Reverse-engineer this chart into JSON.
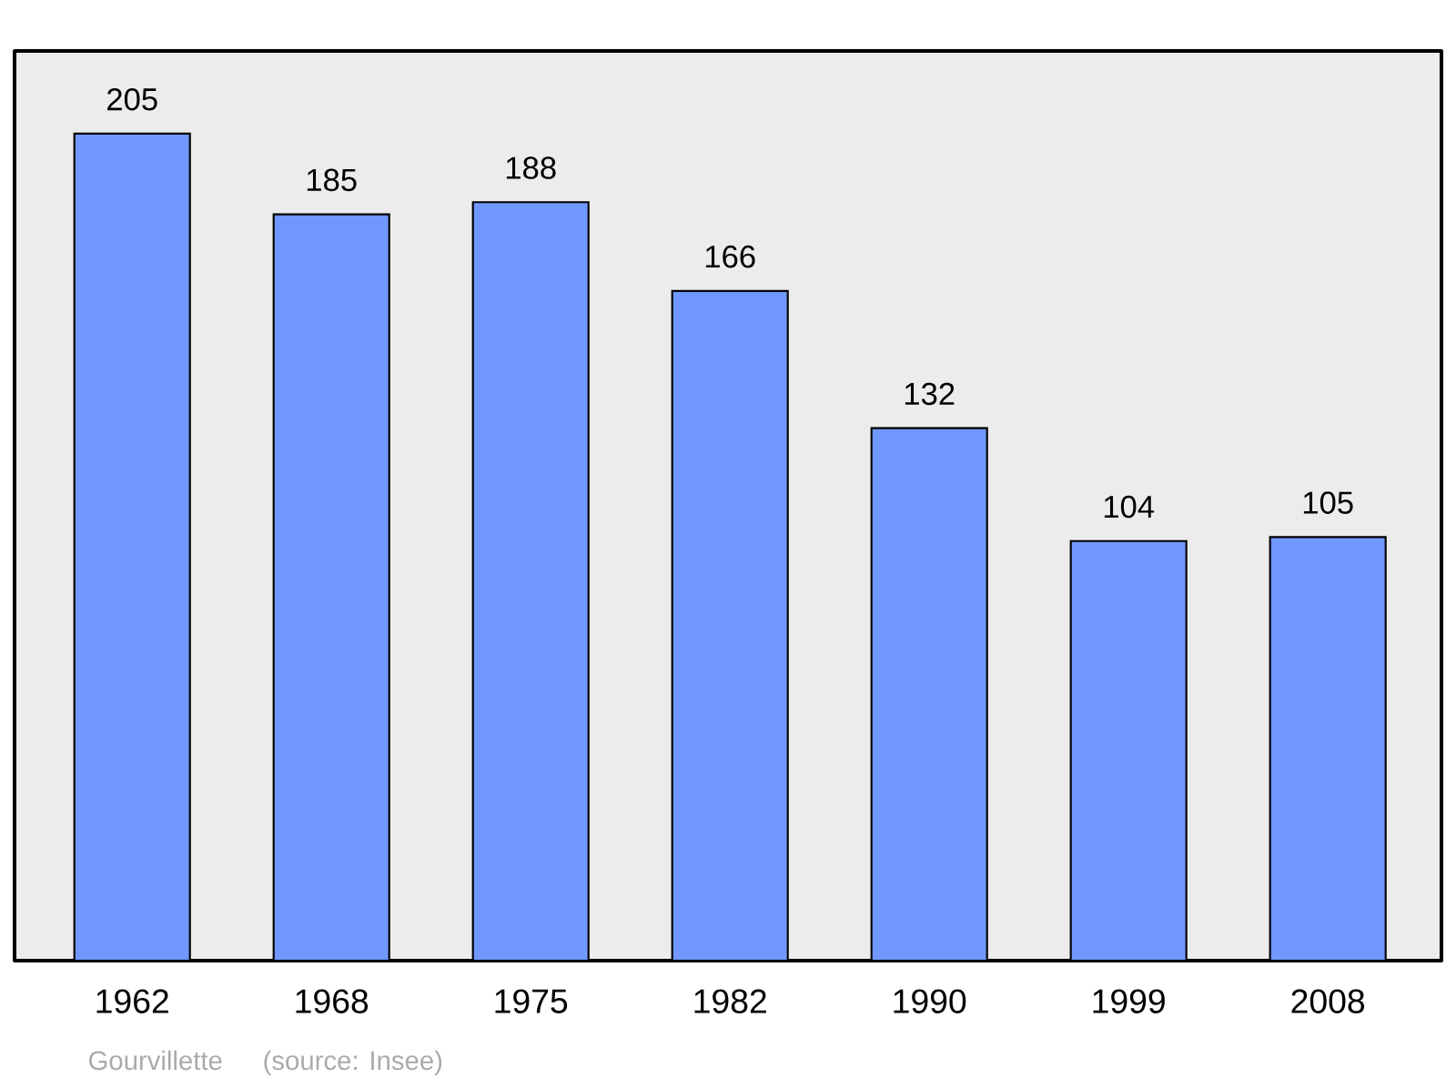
{
  "chart_data": {
    "type": "bar",
    "categories": [
      "1962",
      "1968",
      "1975",
      "1982",
      "1990",
      "1999",
      "2008"
    ],
    "values": [
      205,
      185,
      188,
      166,
      132,
      104,
      105
    ],
    "color": "#7098ff",
    "data_labels": true,
    "annotations": [
      "Gourvillette",
      "(source: Insee)"
    ]
  }
}
